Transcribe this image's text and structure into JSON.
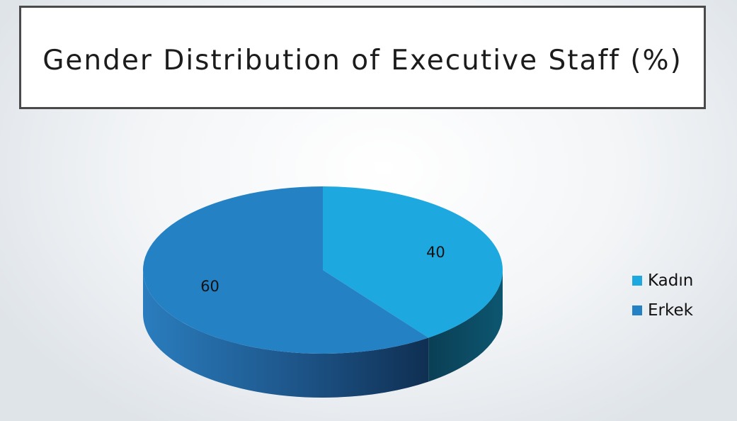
{
  "chart_data": {
    "type": "pie",
    "title": "Gender Distribution of Executive Staff (%)",
    "slices": [
      {
        "label": "Kadın",
        "value": 40,
        "data_label": "40",
        "color": "#1da8e0",
        "side_color": "#0c4a5c"
      },
      {
        "label": "Erkek",
        "value": 60,
        "data_label": "60",
        "color": "#2481c4",
        "side_color": "#1d5f97"
      }
    ],
    "legend_position": "right",
    "style": "3d"
  }
}
